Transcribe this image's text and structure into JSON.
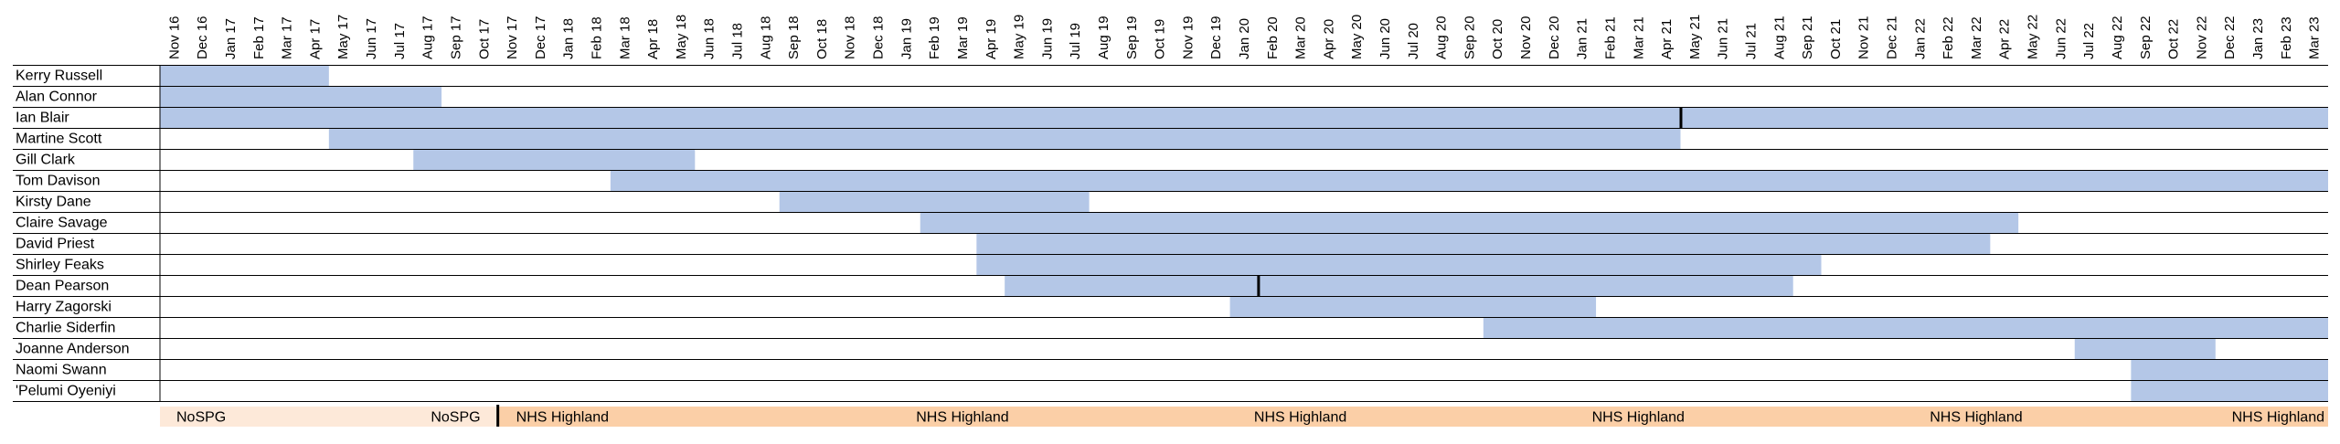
{
  "chart_data": {
    "type": "gantt",
    "months": [
      "Nov 16",
      "Dec 16",
      "Jan 17",
      "Feb 17",
      "Mar 17",
      "Apr 17",
      "May 17",
      "Jun 17",
      "Jul 17",
      "Aug 17",
      "Sep 17",
      "Oct 17",
      "Nov 17",
      "Dec 17",
      "Jan 18",
      "Feb 18",
      "Mar 18",
      "Apr 18",
      "May 18",
      "Jun 18",
      "Jul 18",
      "Aug 18",
      "Sep 18",
      "Oct 18",
      "Nov 18",
      "Dec 18",
      "Jan 19",
      "Feb 19",
      "Mar 19",
      "Apr 19",
      "May 19",
      "Jun 19",
      "Jul 19",
      "Aug 19",
      "Sep 19",
      "Oct 19",
      "Nov 19",
      "Dec 19",
      "Jan 20",
      "Feb 20",
      "Mar 20",
      "Apr 20",
      "May 20",
      "Jun 20",
      "Jul 20",
      "Aug 20",
      "Sep 20",
      "Oct 20",
      "Nov 20",
      "Dec 20",
      "Jan 21",
      "Feb 21",
      "Mar 21",
      "Apr 21",
      "May 21",
      "Jun 21",
      "Jul 21",
      "Aug 21",
      "Sep 21",
      "Oct 21",
      "Nov 21",
      "Dec 21",
      "Jan 22",
      "Feb 22",
      "Mar 22",
      "Apr 22",
      "May 22",
      "Jun 22",
      "Jul 22",
      "Aug 22",
      "Sep 22",
      "Oct 22",
      "Nov 22",
      "Dec 22",
      "Jan 23",
      "Feb 23",
      "Mar 23"
    ],
    "rows": [
      {
        "name": "Kerry Russell",
        "start": "Nov 16",
        "end": "Apr 17",
        "markers": []
      },
      {
        "name": "Alan Connor",
        "start": "Nov 16",
        "end": "Aug 17",
        "markers": []
      },
      {
        "name": "Ian Blair",
        "start": "Nov 16",
        "end": "Mar 23",
        "markers": [
          "May 21"
        ]
      },
      {
        "name": "Martine Scott",
        "start": "May 17",
        "end": "Apr 21",
        "markers": []
      },
      {
        "name": "Gill Clark",
        "start": "Aug 17",
        "end": "May 18",
        "markers": []
      },
      {
        "name": "Tom Davison",
        "start": "Mar 18",
        "end": "Mar 23",
        "markers": []
      },
      {
        "name": "Kirsty Dane",
        "start": "Sep 18",
        "end": "Jul 19",
        "markers": []
      },
      {
        "name": "Claire Savage",
        "start": "Feb 19",
        "end": "Apr 22",
        "markers": []
      },
      {
        "name": "David Priest",
        "start": "Apr 19",
        "end": "Mar 22",
        "markers": []
      },
      {
        "name": "Shirley Feaks",
        "start": "Apr 19",
        "end": "Sep 21",
        "markers": []
      },
      {
        "name": "Dean Pearson",
        "start": "May 19",
        "end": "Aug 21",
        "markers": [
          "Feb 20"
        ]
      },
      {
        "name": "Harry Zagorski",
        "start": "Jan 20",
        "end": "Jan 21",
        "markers": []
      },
      {
        "name": "Charlie Siderfin",
        "start": "Oct 20",
        "end": "Mar 23",
        "markers": []
      },
      {
        "name": "Joanne Anderson",
        "start": "Jul 22",
        "end": "Nov 22",
        "markers": []
      },
      {
        "name": "Naomi Swann",
        "start": "Sep 22",
        "end": "Mar 23",
        "markers": []
      },
      {
        "name": "'Pelumi Oyeniyi",
        "start": "Sep 22",
        "end": "Mar 23",
        "markers": []
      }
    ],
    "bottom_band": [
      {
        "label": "NoSPG",
        "start": "Nov 16",
        "end": "Oct 17",
        "color": "#fde9d9"
      },
      {
        "label": "NHS Highland",
        "start": "Nov 17",
        "end": "Mar 23",
        "color": "#fbcfa7"
      }
    ],
    "bottom_labels": [
      {
        "text": "NoSPG",
        "month": "Dec 16"
      },
      {
        "text": "NoSPG",
        "month": "Sep 17"
      },
      {
        "text": "NHS Highland",
        "month": "Dec 17"
      },
      {
        "text": "NHS Highland",
        "month": "Mar 19"
      },
      {
        "text": "NHS Highland",
        "month": "Mar 20"
      },
      {
        "text": "NHS Highland",
        "month": "Mar 21"
      },
      {
        "text": "NHS Highland",
        "month": "Mar 22"
      },
      {
        "text": "NHS Highland",
        "month": "Mar 23"
      }
    ],
    "colors": {
      "bar": "#b4c7e7",
      "bar_edge": "#8eaadb",
      "marker": "#000000",
      "gridline": "#000000"
    }
  }
}
